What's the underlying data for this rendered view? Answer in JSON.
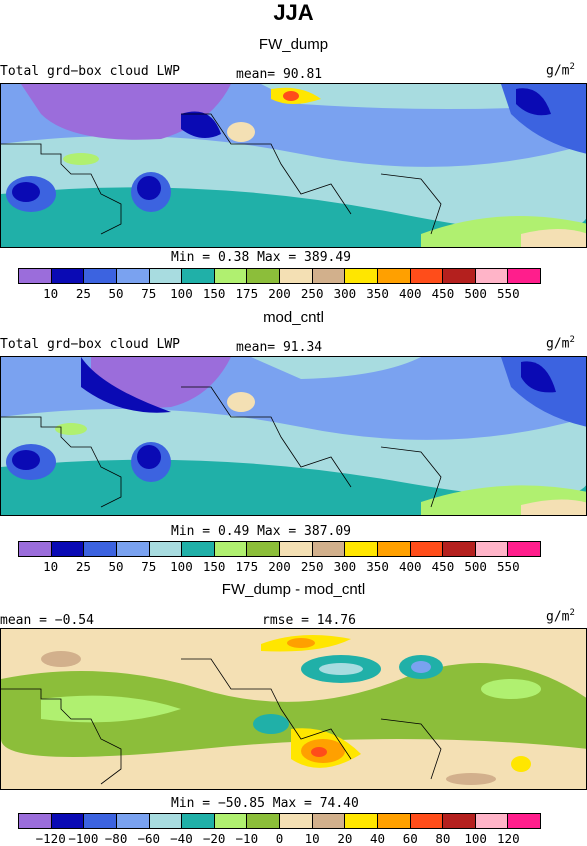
{
  "title": "JJA",
  "panels": [
    {
      "title": "FW_dump",
      "field": "Total grd−box cloud LWP",
      "mean": "mean=  90.81",
      "units": "g/m",
      "units_sup": "2",
      "minmax": "Min =   0.38 Max = 389.49"
    },
    {
      "title": "mod_cntl",
      "field": "Total grd−box cloud LWP",
      "mean": "mean=  91.34",
      "units": "g/m",
      "units_sup": "2",
      "minmax": "Min =   0.49 Max = 387.09"
    },
    {
      "title": "FW_dump - mod_cntl",
      "field": "mean =  −0.54",
      "mean": "rmse =  14.76",
      "units": "g/m",
      "units_sup": "2",
      "minmax": "Min = −50.85 Max =  74.40"
    }
  ],
  "colorbar_abs": {
    "colors": [
      "#9b6ddb",
      "#0a0ab4",
      "#3c63e0",
      "#7aa2f0",
      "#a8dce0",
      "#20b0a8",
      "#b0f070",
      "#8cbe3a",
      "#f4e0b4",
      "#d2b08c",
      "#ffe600",
      "#ffa000",
      "#ff4d1a",
      "#b4201e",
      "#ffb4c8",
      "#ff1e8c"
    ],
    "labels": [
      "10",
      "25",
      "50",
      "75",
      "100",
      "150",
      "175",
      "200",
      "250",
      "300",
      "350",
      "400",
      "450",
      "500",
      "550"
    ]
  },
  "colorbar_diff": {
    "colors": [
      "#9b6ddb",
      "#0a0ab4",
      "#3c63e0",
      "#7aa2f0",
      "#a8dce0",
      "#20b0a8",
      "#b0f070",
      "#8cbe3a",
      "#f4e0b4",
      "#d2b08c",
      "#ffe600",
      "#ffa000",
      "#ff4d1a",
      "#b4201e",
      "#ffb4c8",
      "#ff1e8c"
    ],
    "labels": [
      "−120",
      "−100",
      "−80",
      "−60",
      "−40",
      "−20",
      "−10",
      "0",
      "10",
      "20",
      "40",
      "60",
      "80",
      "100",
      "120"
    ]
  }
}
